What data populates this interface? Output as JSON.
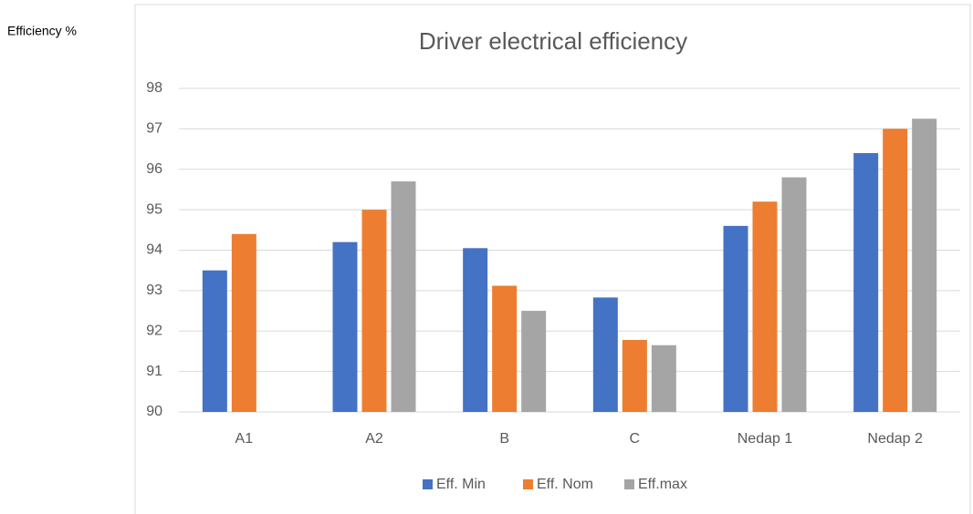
{
  "chart_data": {
    "type": "bar",
    "title": "Driver electrical efficiency",
    "y_label": "Efficiency  %",
    "categories": [
      "A1",
      "A2",
      "B",
      "C",
      "Nedap 1",
      "Nedap 2"
    ],
    "series": [
      {
        "name": "Eff. Min",
        "color": "#4472c4",
        "values": [
          93.5,
          94.2,
          94.05,
          92.83,
          94.6,
          96.4
        ]
      },
      {
        "name": "Eff. Nom",
        "color": "#ed7d31",
        "values": [
          94.4,
          95.0,
          93.12,
          91.78,
          95.2,
          97.0
        ]
      },
      {
        "name": "Eff.max",
        "color": "#a5a5a5",
        "values": [
          null,
          95.7,
          92.5,
          91.65,
          95.8,
          97.25
        ]
      }
    ],
    "ylim": [
      90,
      98
    ],
    "yticks": [
      90,
      91,
      92,
      93,
      94,
      95,
      96,
      97,
      98
    ],
    "grid": true,
    "legend": "bottom"
  }
}
